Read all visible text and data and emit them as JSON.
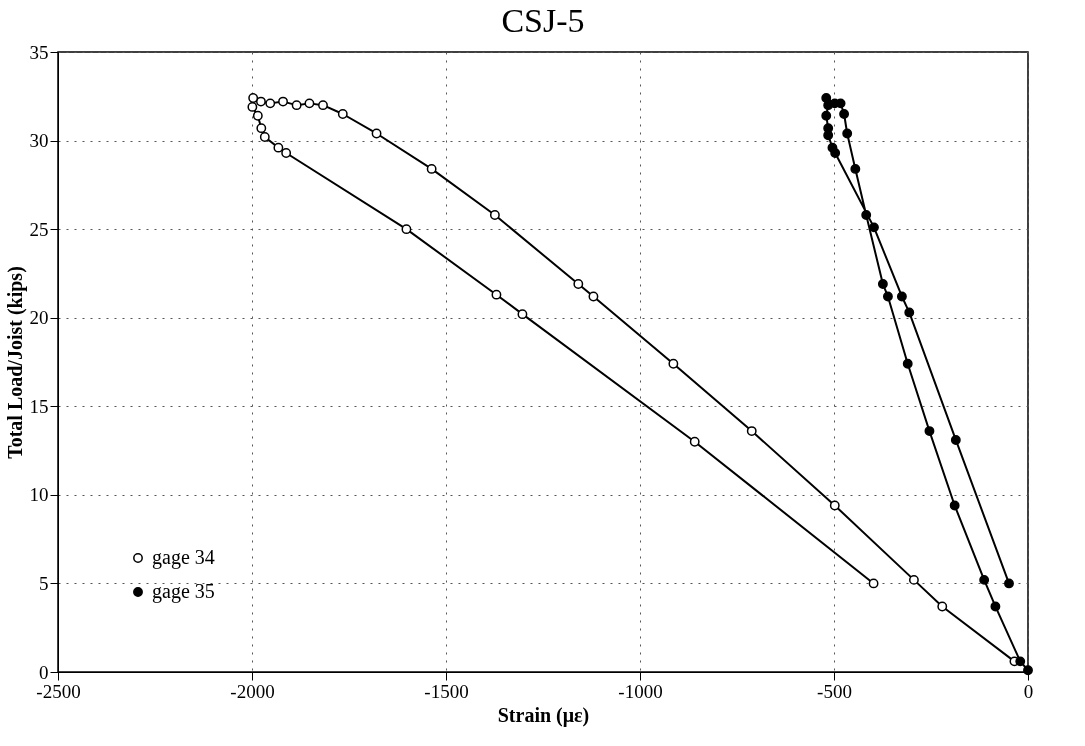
{
  "chart_data": {
    "type": "line",
    "title": "CSJ-5",
    "xlabel": "Strain  (με)",
    "ylabel": "Total Load/Joist  (kips)",
    "xlim": [
      -2500,
      0
    ],
    "xticks": [
      -2500,
      -2000,
      -1500,
      -1000,
      -500,
      0
    ],
    "ylim": [
      0,
      35
    ],
    "yticks": [
      0,
      5,
      10,
      15,
      20,
      25,
      30,
      35
    ],
    "grid": true,
    "legend": "bottom left",
    "marker": "circle",
    "line_style": "solid",
    "series": [
      {
        "name": "gage 34",
        "color": "#ffffff",
        "x": [
          -35,
          -221,
          -294,
          -498,
          -712,
          -914,
          -1120,
          -1159,
          -1374,
          -1537,
          -1679,
          -1766,
          -1817,
          -1852,
          -1885,
          -1920,
          -1953,
          -1977,
          -1997,
          -1999,
          -1985,
          -1976,
          -1967,
          -1932,
          -1912,
          -1602,
          -1370,
          -1303,
          -859,
          -398
        ],
        "values": [
          0.6,
          3.7,
          5.2,
          9.4,
          13.6,
          17.4,
          21.2,
          21.9,
          25.8,
          28.4,
          30.4,
          31.5,
          32.0,
          32.1,
          32.0,
          32.2,
          32.1,
          32.2,
          32.4,
          31.9,
          31.4,
          30.7,
          30.2,
          29.6,
          29.3,
          25.0,
          21.3,
          20.2,
          13.0,
          5.0
        ]
      },
      {
        "name": "gage 35",
        "color": "#000000",
        "x": [
          0,
          -20,
          -84,
          -113,
          -189,
          -254,
          -310,
          -361,
          -374,
          -417,
          -445,
          -466,
          -474,
          -483,
          -498,
          -520,
          -515,
          -520,
          -515,
          -515,
          -504,
          -497,
          -397,
          -325,
          -306,
          -186,
          -49
        ],
        "values": [
          0.1,
          0.6,
          3.7,
          5.2,
          9.4,
          13.6,
          17.4,
          21.2,
          21.9,
          25.8,
          28.4,
          30.4,
          31.5,
          32.1,
          32.1,
          32.4,
          32.0,
          31.4,
          30.7,
          30.3,
          29.6,
          29.3,
          25.1,
          21.2,
          20.3,
          13.1,
          5.0
        ]
      }
    ]
  }
}
